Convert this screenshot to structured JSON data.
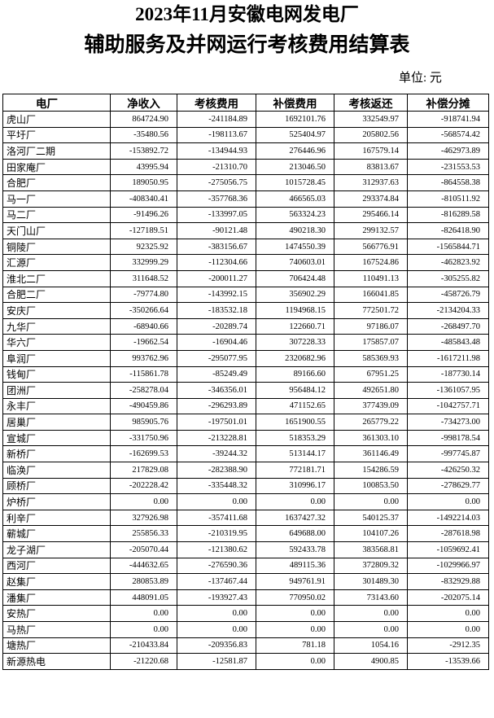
{
  "title": [
    "2023年11月安徽电网发电厂",
    "辅助服务及并网运行考核费用结算表"
  ],
  "unit": "单位: 元",
  "table": {
    "header": [
      "电厂",
      "净收入",
      "考核费用",
      "补偿费用",
      "考核返还",
      "补偿分摊"
    ],
    "rows": [
      [
        "虎山厂",
        "864724.90",
        "-241184.89",
        "1692101.76",
        "332549.97",
        "-918741.94"
      ],
      [
        "平圩厂",
        "-35480.56",
        "-198113.67",
        "525404.97",
        "205802.56",
        "-568574.42"
      ],
      [
        "洛河厂二期",
        "-153892.72",
        "-134944.93",
        "276446.96",
        "167579.14",
        "-462973.89"
      ],
      [
        "田家庵厂",
        "43995.94",
        "-21310.70",
        "213046.50",
        "83813.67",
        "-231553.53"
      ],
      [
        "合肥厂",
        "189050.95",
        "-275056.75",
        "1015728.45",
        "312937.63",
        "-864558.38"
      ],
      [
        "马一厂",
        "-408340.41",
        "-357768.36",
        "466565.03",
        "293374.84",
        "-810511.92"
      ],
      [
        "马二厂",
        "-91496.26",
        "-133997.05",
        "563324.23",
        "295466.14",
        "-816289.58"
      ],
      [
        "天门山厂",
        "-127189.51",
        "-90121.48",
        "490218.30",
        "299132.57",
        "-826418.90"
      ],
      [
        "铜陵厂",
        "92325.92",
        "-383156.67",
        "1474550.39",
        "566776.91",
        "-1565844.71"
      ],
      [
        "汇源厂",
        "332999.29",
        "-112304.66",
        "740603.01",
        "167524.86",
        "-462823.92"
      ],
      [
        "淮北二厂",
        "311648.52",
        "-200011.27",
        "706424.48",
        "110491.13",
        "-305255.82"
      ],
      [
        "合肥二厂",
        "-79774.80",
        "-143992.15",
        "356902.29",
        "166041.85",
        "-458726.79"
      ],
      [
        "安庆厂",
        "-350266.64",
        "-183532.18",
        "1194968.15",
        "772501.72",
        "-2134204.33"
      ],
      [
        "九华厂",
        "-68940.66",
        "-20289.74",
        "122660.71",
        "97186.07",
        "-268497.70"
      ],
      [
        "华六厂",
        "-19662.54",
        "-16904.46",
        "307228.33",
        "175857.07",
        "-485843.48"
      ],
      [
        "阜润厂",
        "993762.96",
        "-295077.95",
        "2320682.96",
        "585369.93",
        "-1617211.98"
      ],
      [
        "钱甸厂",
        "-115861.78",
        "-85249.49",
        "89166.60",
        "67951.25",
        "-187730.14"
      ],
      [
        "团洲厂",
        "-258278.04",
        "-346356.01",
        "956484.12",
        "492651.80",
        "-1361057.95"
      ],
      [
        "永丰厂",
        "-490459.86",
        "-296293.89",
        "471152.65",
        "377439.09",
        "-1042757.71"
      ],
      [
        "居巢厂",
        "985905.76",
        "-197501.01",
        "1651900.55",
        "265779.22",
        "-734273.00"
      ],
      [
        "宣城厂",
        "-331750.96",
        "-213228.81",
        "518353.29",
        "361303.10",
        "-998178.54"
      ],
      [
        "新桥厂",
        "-162699.53",
        "-39244.32",
        "513144.17",
        "361146.49",
        "-997745.87"
      ],
      [
        "临涣厂",
        "217829.08",
        "-282388.90",
        "772181.71",
        "154286.59",
        "-426250.32"
      ],
      [
        "顾桥厂",
        "-202228.42",
        "-335448.32",
        "310996.17",
        "100853.50",
        "-278629.77"
      ],
      [
        "炉桥厂",
        "0.00",
        "0.00",
        "0.00",
        "0.00",
        "0.00"
      ],
      [
        "利辛厂",
        "327926.98",
        "-357411.68",
        "1637427.32",
        "540125.37",
        "-1492214.03"
      ],
      [
        "蕲城厂",
        "255856.33",
        "-210319.95",
        "649688.00",
        "104107.26",
        "-287618.98"
      ],
      [
        "龙子湖厂",
        "-205070.44",
        "-121380.62",
        "592433.78",
        "383568.81",
        "-1059692.41"
      ],
      [
        "西河厂",
        "-444632.65",
        "-276590.36",
        "489115.36",
        "372809.32",
        "-1029966.97"
      ],
      [
        "赵集厂",
        "280853.89",
        "-137467.44",
        "949761.91",
        "301489.30",
        "-832929.88"
      ],
      [
        "潘集厂",
        "448091.05",
        "-193927.43",
        "770950.02",
        "73143.60",
        "-202075.14"
      ],
      [
        "安热厂",
        "0.00",
        "0.00",
        "0.00",
        "0.00",
        "0.00"
      ],
      [
        "马热厂",
        "0.00",
        "0.00",
        "0.00",
        "0.00",
        "0.00"
      ],
      [
        "塘热厂",
        "-210433.84",
        "-209356.83",
        "781.18",
        "1054.16",
        "-2912.35"
      ],
      [
        "新源热电",
        "-21220.68",
        "-12581.87",
        "0.00",
        "4900.85",
        "-13539.66"
      ]
    ]
  }
}
